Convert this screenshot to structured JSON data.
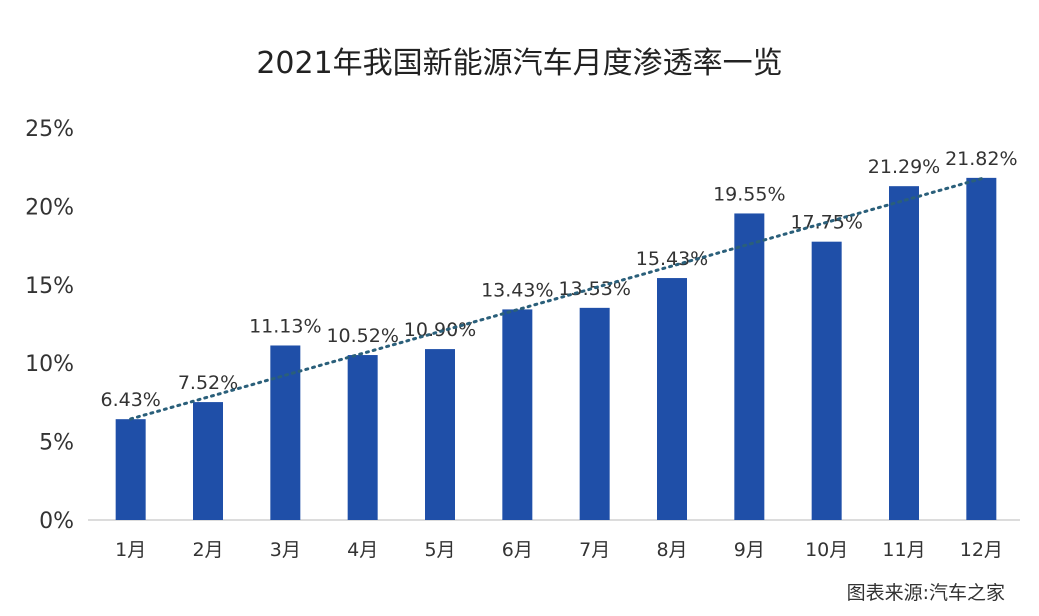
{
  "chart_data": {
    "type": "bar",
    "title": "2021年我国新能源汽车月度渗透率一览",
    "categories": [
      "1月",
      "2月",
      "3月",
      "4月",
      "5月",
      "6月",
      "7月",
      "8月",
      "9月",
      "10月",
      "11月",
      "12月"
    ],
    "values": [
      6.43,
      7.52,
      11.13,
      10.52,
      10.9,
      13.43,
      13.53,
      15.43,
      19.55,
      17.75,
      21.29,
      21.82
    ],
    "value_labels": [
      "6.43%",
      "7.52%",
      "11.13%",
      "10.52%",
      "10.90%",
      "13.43%",
      "13.53%",
      "15.43%",
      "19.55%",
      "17.75%",
      "21.29%",
      "21.82%"
    ],
    "ylim": [
      0,
      25
    ],
    "yticks": [
      "0%",
      "5%",
      "10%",
      "15%",
      "20%",
      "25%"
    ],
    "ytick_values": [
      0,
      5,
      10,
      15,
      20,
      25
    ],
    "trendline": "linear dotted",
    "bar_color": "#1f4fa8",
    "trend_color": "#2a5f7a",
    "grid": false,
    "source": "图表来源:汽车之家"
  }
}
